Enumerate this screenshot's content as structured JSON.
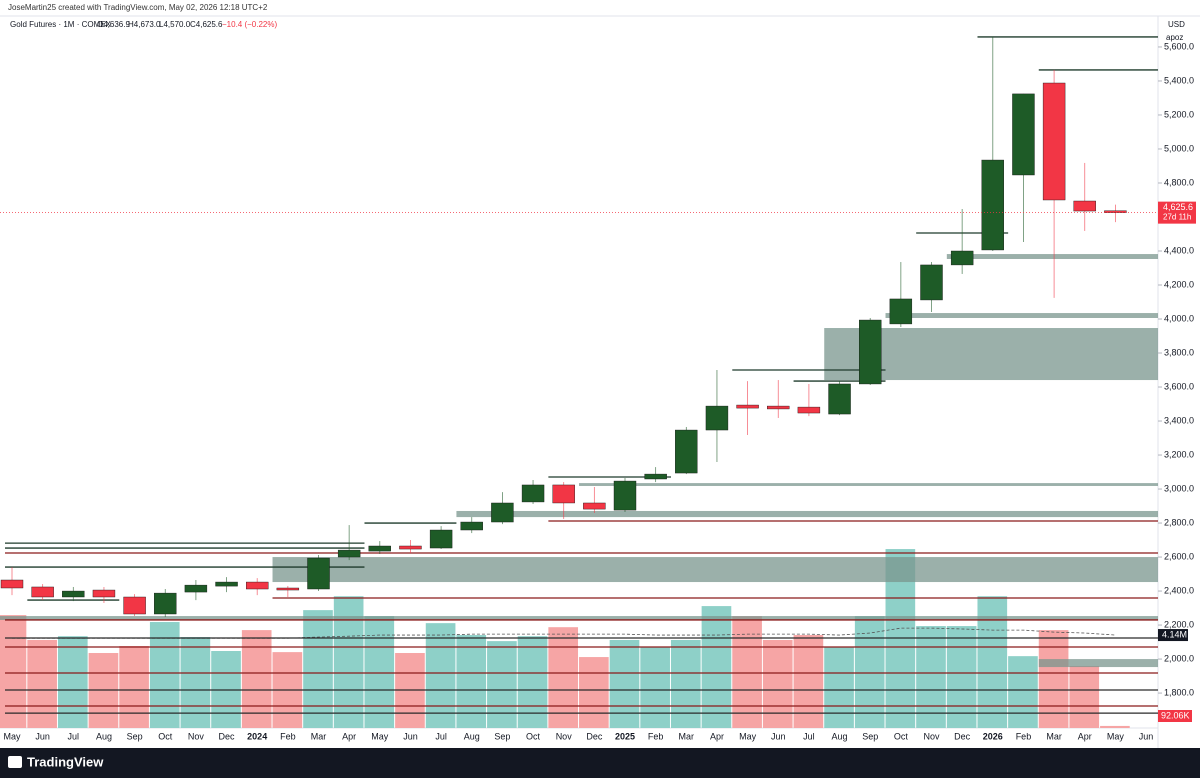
{
  "header": {
    "attribution": "JoseMartin25 created with TradingView.com, May 02, 2026 12:18 UTC+2"
  },
  "legend": {
    "title": "Gold Futures · 1M · COMEX",
    "open": "O4,636.9",
    "high": "H4,673.0",
    "low": "L4,570.0",
    "close": "C4,625.6",
    "change": "−10.4 (−0.22%)"
  },
  "axis_header": {
    "currency": "USD",
    "button": "apoz"
  },
  "countdown": "27d 11h",
  "footer": {
    "brand": "TradingView"
  },
  "chart_data": {
    "type": "candlestick",
    "categories": [
      "May",
      "Jun",
      "Jul",
      "Aug",
      "Sep",
      "Oct",
      "Nov",
      "Dec",
      "2024",
      "Feb",
      "Mar",
      "Apr",
      "May",
      "Jun",
      "Jul",
      "Aug",
      "Sep",
      "Oct",
      "Nov",
      "Dec",
      "2025",
      "Feb",
      "Mar",
      "Apr",
      "May",
      "Jun",
      "Jul",
      "Aug",
      "Sep",
      "Oct",
      "Nov",
      "Dec",
      "2026",
      "Feb",
      "Mar",
      "Apr",
      "May",
      "Jun"
    ],
    "open": [
      2465,
      2424,
      2365,
      2406,
      2365,
      2265,
      2394,
      2429,
      2453,
      2418,
      2412,
      2600,
      2635,
      2665,
      2653,
      2759,
      2806,
      2924,
      3024,
      2918,
      2876,
      3059,
      3094,
      3347,
      3494,
      3488,
      3482,
      3441,
      3618,
      3971,
      4112,
      4318,
      4406,
      4847,
      5388,
      4694,
      4636.9,
      null
    ],
    "high": [
      2541,
      2441,
      2424,
      2424,
      2382,
      2412,
      2465,
      2482,
      2476,
      2430,
      2612,
      2788,
      2694,
      2700,
      2782,
      2835,
      2982,
      3053,
      3041,
      3012,
      3065,
      3129,
      3365,
      3700,
      3635,
      3641,
      3618,
      3635,
      4006,
      4335,
      4335,
      4647,
      5659,
      5324,
      5465,
      4918,
      4673.0,
      null
    ],
    "low": [
      2376,
      2347,
      2341,
      2330,
      2253,
      2247,
      2347,
      2394,
      2376,
      2365,
      2400,
      2582,
      2618,
      2624,
      2647,
      2741,
      2794,
      2912,
      2824,
      2859,
      2865,
      3041,
      3088,
      3159,
      3318,
      3418,
      3429,
      3435,
      3612,
      3953,
      4041,
      4265,
      4400,
      4453,
      4124,
      4518,
      4570.0,
      null
    ],
    "close": [
      2418,
      2365,
      2400,
      2365,
      2265,
      2388,
      2435,
      2453,
      2412,
      2406,
      2594,
      2641,
      2665,
      2647,
      2759,
      2806,
      2918,
      3024,
      2918,
      2882,
      3047,
      3088,
      3347,
      3488,
      3476,
      3471,
      3447,
      3618,
      3994,
      4118,
      4318,
      4400,
      4935,
      5324,
      4700,
      4635,
      4625.6,
      null
    ],
    "up_color": "#1e5b27",
    "down_color": "#f23645",
    "ylim": [
      1524,
      5688
    ],
    "yticks": [
      {
        "value": 1800,
        "label": "1,800.0"
      },
      {
        "value": 2000,
        "label": "2,000.0"
      },
      {
        "value": 2200,
        "label": "2,200.0"
      },
      {
        "value": 2400,
        "label": "2,400.0"
      },
      {
        "value": 2600,
        "label": "2,600.0"
      },
      {
        "value": 2800,
        "label": "2,800.0"
      },
      {
        "value": 3000,
        "label": "3,000.0"
      },
      {
        "value": 3200,
        "label": "3,200.0"
      },
      {
        "value": 3400,
        "label": "3,400.0"
      },
      {
        "value": 3600,
        "label": "3,600.0"
      },
      {
        "value": 3800,
        "label": "3,800.0"
      },
      {
        "value": 4000,
        "label": "4,000.0"
      },
      {
        "value": 4200,
        "label": "4,200.0"
      },
      {
        "value": 4400,
        "label": "4,400.0"
      },
      {
        "value": 4800,
        "label": "4,800.0"
      },
      {
        "value": 5000,
        "label": "5,000.0"
      },
      {
        "value": 5200,
        "label": "5,200.0"
      },
      {
        "value": 5400,
        "label": "5,400.0"
      },
      {
        "value": 5600,
        "label": "5,600.0"
      }
    ],
    "last_price": {
      "value": 4625.6,
      "label": "4,625.6"
    },
    "volume": {
      "values": [
        5030000,
        3920000,
        4090000,
        3340000,
        3650000,
        4720000,
        4050000,
        3430000,
        4360000,
        3380000,
        5250000,
        5870000,
        4980000,
        3340000,
        4670000,
        4140000,
        3870000,
        4090000,
        4490000,
        3160000,
        3920000,
        3600000,
        3920000,
        5430000,
        4980000,
        3920000,
        4140000,
        3600000,
        4980000,
        7970000,
        4540000,
        4540000,
        5870000,
        3200000,
        4360000,
        2760000,
        92060,
        null
      ],
      "last_label": "92.06K",
      "ylim": [
        0,
        31000000
      ],
      "up_color": "#8ed0c8",
      "down_color": "#f6a5a5",
      "ma": [
        4000000,
        4000000,
        4000000,
        4000000,
        4000000,
        4000000,
        4000000,
        4000000,
        4000000,
        4000000,
        4050000,
        4090000,
        4140000,
        4140000,
        4140000,
        4180000,
        4180000,
        4180000,
        4180000,
        4180000,
        4180000,
        4140000,
        4140000,
        4140000,
        4180000,
        4180000,
        4180000,
        4140000,
        4230000,
        4450000,
        4450000,
        4410000,
        4360000,
        4360000,
        4270000,
        4230000,
        4140000,
        null
      ],
      "ma_label": "4.14M"
    },
    "levels": [
      {
        "price": 5659,
        "from": 32,
        "to": 37,
        "color": "#1f3b2c"
      },
      {
        "price": 5465,
        "from": 34,
        "to": 37,
        "color": "#1f3b2c"
      },
      {
        "price": 4506,
        "from": 30,
        "to": 32,
        "color": "#1f3b2c"
      },
      {
        "price": 3700,
        "from": 24,
        "to": 28,
        "color": "#1f3b2c"
      },
      {
        "price": 3635,
        "from": 26,
        "to": 28,
        "color": "#1f3b2c"
      },
      {
        "price": 3071,
        "from": 18,
        "to": 21,
        "color": "#1f3b2c"
      },
      {
        "price": 2800,
        "from": 12,
        "to": 14,
        "color": "#1f3b2c"
      },
      {
        "price": 2682,
        "from": 0,
        "to": 11,
        "color": "#1f3b2c"
      },
      {
        "price": 2653,
        "from": 0,
        "to": 11,
        "color": "#1f3b2c"
      },
      {
        "price": 2541,
        "from": 0,
        "to": 11,
        "color": "#1f3b2c"
      },
      {
        "price": 2347,
        "from": 1,
        "to": 3,
        "color": "#1f3b2c"
      },
      {
        "price": 2812,
        "from": 18,
        "to": 37,
        "color": "#8b1a1a"
      },
      {
        "price": 2624,
        "from": 0,
        "to": 37,
        "color": "#8b1a1a"
      },
      {
        "price": 2359,
        "from": 9,
        "to": 37,
        "color": "#8b1a1a"
      },
      {
        "price": 2230,
        "from": 0,
        "to": 37,
        "color": "#8b1a1a"
      },
      {
        "price": 2124,
        "from": 0,
        "to": 37,
        "color": "#2a2a2a"
      },
      {
        "price": 2071,
        "from": 0,
        "to": 37,
        "color": "#8b1a1a"
      },
      {
        "price": 1918,
        "from": 0,
        "to": 37,
        "color": "#8b1a1a"
      },
      {
        "price": 1818,
        "from": 0,
        "to": 37,
        "color": "#2a2a2a"
      },
      {
        "price": 1724,
        "from": 0,
        "to": 37,
        "color": "#8b1a1a"
      },
      {
        "price": 1682,
        "from": 0,
        "to": 37,
        "color": "#2a2a2a"
      }
    ],
    "zones": [
      {
        "low": 4353,
        "high": 4382,
        "from": 31
      },
      {
        "low": 4006,
        "high": 4035,
        "from": 29
      },
      {
        "low": 3641,
        "high": 3947,
        "from": 27
      },
      {
        "low": 3018,
        "high": 3035,
        "from": 19
      },
      {
        "low": 2835,
        "high": 2871,
        "from": 15
      },
      {
        "low": 2453,
        "high": 2600,
        "from": 9
      },
      {
        "low": 2230,
        "high": 2253,
        "from": 0
      },
      {
        "low": 1953,
        "high": 2000,
        "from": 34
      }
    ],
    "zone_color": "#7a958e"
  }
}
